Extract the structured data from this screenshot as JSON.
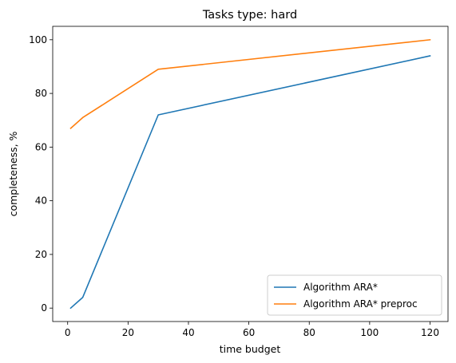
{
  "chart_data": {
    "type": "line",
    "title": "Tasks type: hard",
    "xlabel": "time budget",
    "ylabel": "completeness, %",
    "xlim": [
      -4.95,
      125.95
    ],
    "ylim": [
      -5,
      105
    ],
    "xticks": [
      0,
      20,
      40,
      60,
      80,
      100,
      120
    ],
    "yticks": [
      0,
      20,
      40,
      60,
      80,
      100
    ],
    "grid": false,
    "legend_position": "lower right",
    "series": [
      {
        "name": "Algorithm ARA*",
        "color": "#1f77b4",
        "x": [
          1,
          5,
          30,
          120
        ],
        "y": [
          0,
          4,
          72,
          94
        ]
      },
      {
        "name": "Algorithm ARA* preproc",
        "color": "#ff7f0e",
        "x": [
          1,
          5,
          30,
          120
        ],
        "y": [
          67,
          71,
          89,
          100
        ]
      }
    ]
  }
}
